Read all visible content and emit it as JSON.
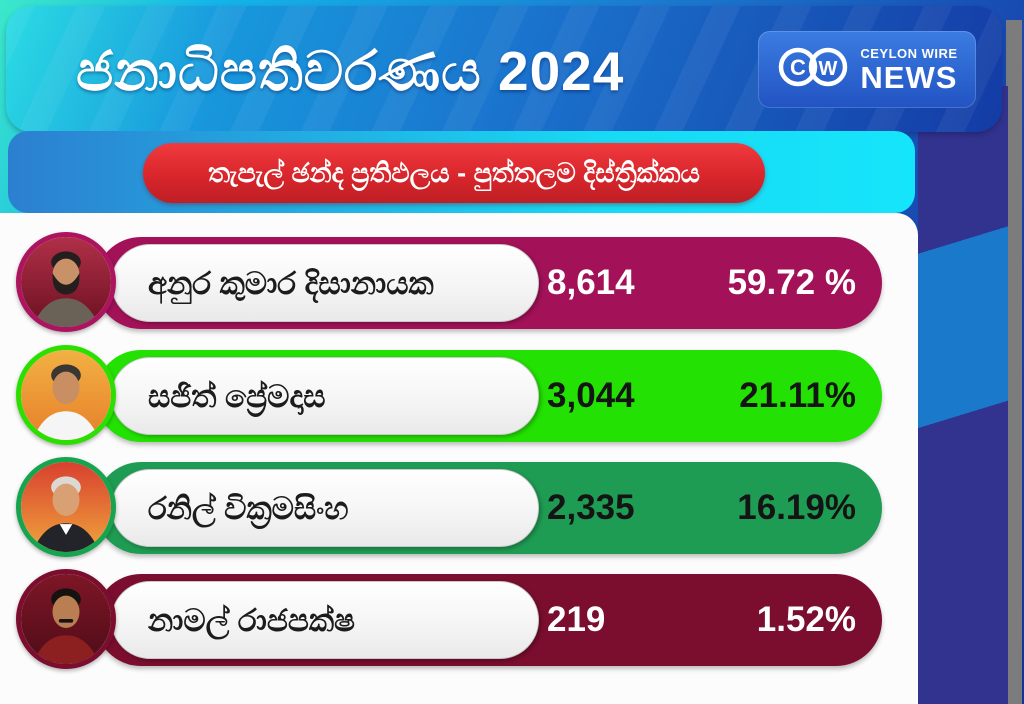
{
  "header": {
    "title": "ජනාධිපතිවරණය 2024",
    "logo": {
      "mark": "CW",
      "line1": "CEYLON WIRE",
      "line2": "NEWS"
    }
  },
  "banner": {
    "text": "තැපැල් ඡන්ද ප්‍රතිඵලය - පුත්තලම දිස්ත්‍රික්කය"
  },
  "candidates": [
    {
      "name": "අනුර කුමාර දිසානායක",
      "votes": "8,614",
      "percent": "59.72 %",
      "bar_color": "#a31259",
      "ring_color": "#ad145f",
      "value_text_color": "#ffffff",
      "photo": {
        "bg_top": "#b03048",
        "bg_bottom": "#6c1021",
        "hair": "#241f1e",
        "skin": "#c89168",
        "suit": "#6b6257",
        "beard": true,
        "mustache": false,
        "collar": false
      }
    },
    {
      "name": "සජිත් ප්‍රේමදාස",
      "votes": "3,044",
      "percent": "21.11%",
      "bar_color": "#23e203",
      "ring_color": "#2be000",
      "value_text_color": "#141414",
      "photo": {
        "bg_top": "#f2b143",
        "bg_bottom": "#e77f2a",
        "hair": "#3a3632",
        "skin": "#c98e62",
        "suit": "#f5f5f5",
        "beard": false,
        "mustache": false,
        "collar": false
      }
    },
    {
      "name": "රනිල් වික්‍රමසිංහ",
      "votes": "2,335",
      "percent": "16.19%",
      "bar_color": "#1f9c53",
      "ring_color": "#17a44e",
      "value_text_color": "#141414",
      "photo": {
        "bg_top": "#d8402f",
        "bg_bottom": "#f0a43c",
        "hair": "#dcd9d4",
        "skin": "#d9a173",
        "suit": "#23242a",
        "beard": false,
        "mustache": false,
        "collar": true
      }
    },
    {
      "name": "නාමල් රාජපක්ෂ",
      "votes": "219",
      "percent": "1.52%",
      "bar_color": "#7b0e2e",
      "ring_color": "#7b0e2e",
      "value_text_color": "#ffffff",
      "photo": {
        "bg_top": "#7e1626",
        "bg_bottom": "#4f0c18",
        "hair": "#16120f",
        "skin": "#b97f52",
        "suit": "#8c1f1f",
        "beard": false,
        "mustache": true,
        "collar": false
      }
    }
  ],
  "colors": {
    "header_gradient": [
      "#2bdce4",
      "#1898dd",
      "#1a6fcb",
      "#143ba5"
    ],
    "band_gradient": [
      "#2c7fd0",
      "#15e5fa"
    ],
    "banner_red": "#d8262c",
    "card_bg": "#fcfcfd",
    "ribbon_indigo": "#32338f",
    "ribbon_light_blue": "#1b79cc",
    "shadow_gray": "#7c7c7c",
    "title_color": "#ffffff"
  },
  "chart_data": {
    "type": "bar",
    "title": "ජනාධිපතිවරණය 2024",
    "subtitle": "තැපැල් ඡන්ද ප්‍රතිඵලය - පුත්තලම දිස්ත්‍රික්කය",
    "categories": [
      "අනුර කුමාර දිසානායක",
      "සජිත් ප්‍රේමදාස",
      "රනිල් වික්‍රමසිංහ",
      "නාමල් රාජපක්ෂ"
    ],
    "series": [
      {
        "name": "votes",
        "values": [
          8614,
          3044,
          2335,
          219
        ]
      },
      {
        "name": "percent",
        "values": [
          59.72,
          21.11,
          16.19,
          1.52
        ]
      }
    ],
    "bar_colors": [
      "#a31259",
      "#23e203",
      "#1f9c53",
      "#7b0e2e"
    ],
    "legend": false,
    "grid": false
  }
}
